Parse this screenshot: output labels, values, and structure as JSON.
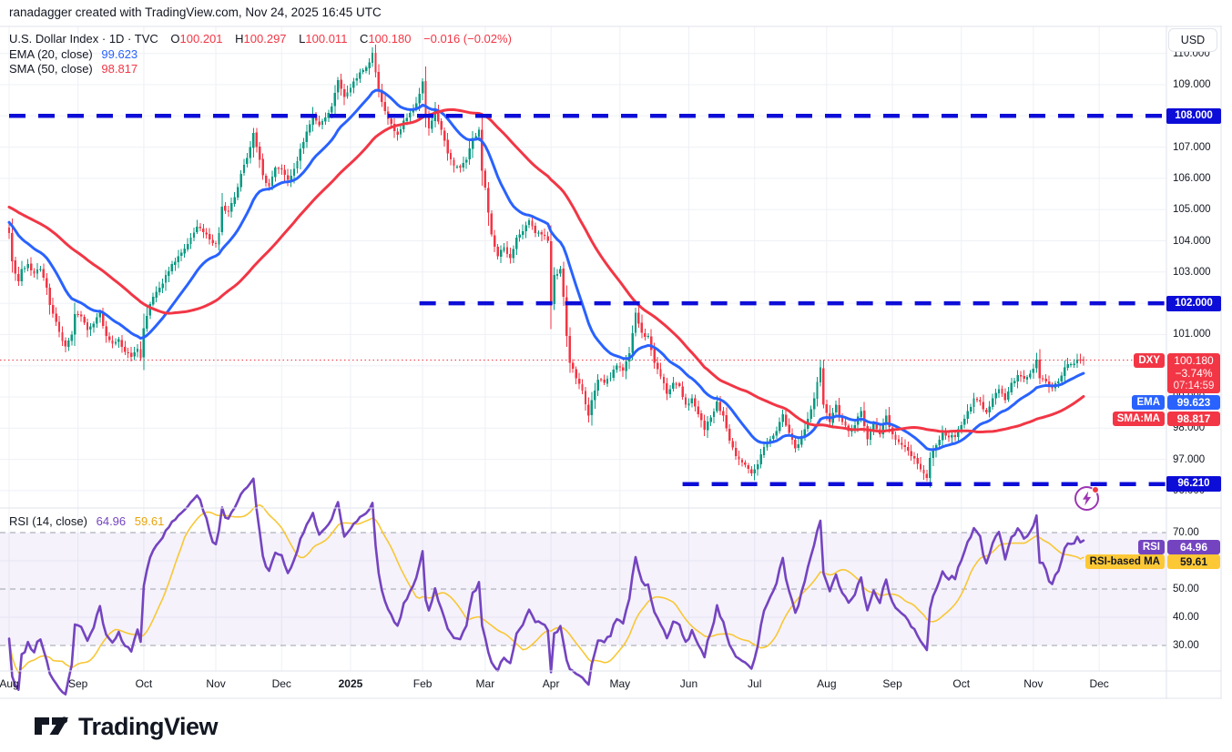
{
  "header": {
    "watermark": "ranadagger created with TradingView.com, Nov 24, 2025 16:45 UTC"
  },
  "legend": {
    "title": "U.S. Dollar Index · 1D · TVC",
    "open_key": "O",
    "open_value": "100.201",
    "high_key": "H",
    "high_value": "100.297",
    "low_key": "L",
    "low_value": "100.011",
    "close_key": "C",
    "close_value": "100.180",
    "change": "−0.016 (−0.02%)",
    "ema_label": "EMA (20, close)",
    "ema_value": "99.623",
    "sma_label": "SMA (50, close)",
    "sma_value": "98.817",
    "rsi_label": "RSI (14, close)",
    "rsi_value": "64.96",
    "rsi_ma_value": "59.61"
  },
  "axis": {
    "currency_button": "USD",
    "price_ticks": [
      "110.000",
      "109.000",
      "108.000",
      "107.000",
      "106.000",
      "105.000",
      "104.000",
      "103.000",
      "102.000",
      "101.000",
      "100.000",
      "99.000",
      "98.000",
      "97.000",
      "96.000"
    ],
    "rsi_ticks": [
      "70.00",
      "50.00",
      "40.00",
      "30.00"
    ],
    "months": [
      {
        "label": "Aug",
        "day": 0
      },
      {
        "label": "Sep",
        "day": 22
      },
      {
        "label": "Oct",
        "day": 43
      },
      {
        "label": "Nov",
        "day": 66
      },
      {
        "label": "Dec",
        "day": 87
      },
      {
        "label": "2025",
        "day": 109,
        "bold": true
      },
      {
        "label": "Feb",
        "day": 132
      },
      {
        "label": "Mar",
        "day": 152
      },
      {
        "label": "Apr",
        "day": 173
      },
      {
        "label": "May",
        "day": 195
      },
      {
        "label": "Jun",
        "day": 217
      },
      {
        "label": "Jul",
        "day": 238
      },
      {
        "label": "Aug",
        "day": 261
      },
      {
        "label": "Sep",
        "day": 282
      },
      {
        "label": "Oct",
        "day": 304
      },
      {
        "label": "Nov",
        "day": 327
      },
      {
        "label": "Dec",
        "day": 348
      }
    ]
  },
  "price_labels": {
    "dxy": {
      "tag": "DXY",
      "price": "100.180",
      "change_pct": "−3.74%",
      "countdown": "07:14:59"
    },
    "ema": {
      "tag": "EMA",
      "value": "99.623"
    },
    "sma": {
      "tag": "SMA:MA",
      "value": "98.817"
    },
    "levels": [
      "108.000",
      "102.000",
      "96.210"
    ],
    "rsi": {
      "tag": "RSI",
      "value": "64.96"
    },
    "rsi_ma": {
      "tag": "RSI-based MA",
      "value": "59.61"
    }
  },
  "footer": {
    "brand": "TradingView"
  },
  "colors": {
    "up": "#089981",
    "down": "#f23645",
    "ema": "#2962ff",
    "sma": "#f23645",
    "level_blue": "#0d0dd8",
    "dotted_red": "#f23645",
    "rsi_purple": "#7444c0",
    "rsi_yellow": "#f8c735",
    "rsi_label_yellow": "#fdc835",
    "band_fill": "rgba(116,68,192,0.07)",
    "dash_gray": "#9aa0aa",
    "grid": "#eef0f6",
    "border": "#e0e3eb",
    "text": "#131722"
  },
  "chart_data": {
    "type": "candlestick",
    "symbol": "U.S. Dollar Index (DXY)",
    "exchange": "TVC",
    "timeframe": "1D",
    "currency": "USD",
    "title": "U.S. Dollar Index · 1D · TVC",
    "ylabel": "USD",
    "price_axis_range": [
      96.0,
      110.0
    ],
    "last_bar": {
      "open": 100.201,
      "high": 100.297,
      "low": 100.011,
      "close": 100.18,
      "change": -0.016,
      "change_pct": -0.02,
      "session_change_pct": -3.74,
      "countdown": "07:14:59"
    },
    "indicators": {
      "ema20": 99.623,
      "sma50": 98.817,
      "rsi14": 64.96,
      "rsi_based_ma": 59.61
    },
    "levels": [
      {
        "value": 108.0,
        "label": "108.000",
        "from_day": 0
      },
      {
        "value": 102.0,
        "label": "102.000",
        "from_day": 131
      },
      {
        "value": 96.21,
        "label": "96.210",
        "from_day": 215
      }
    ],
    "rsi_bands": [
      70,
      50,
      30
    ],
    "days_total": 344,
    "close_keypoints": [
      [
        0,
        104.25
      ],
      [
        1,
        103.35
      ],
      [
        2,
        102.95
      ],
      [
        3,
        102.7
      ],
      [
        4,
        103.1
      ],
      [
        6,
        103.25
      ],
      [
        8,
        102.95
      ],
      [
        10,
        103.1
      ],
      [
        12,
        102.5
      ],
      [
        13,
        101.95
      ],
      [
        15,
        101.4
      ],
      [
        17,
        100.8
      ],
      [
        18,
        100.62
      ],
      [
        20,
        101.0
      ],
      [
        21,
        101.65
      ],
      [
        23,
        101.58
      ],
      [
        25,
        101.15
      ],
      [
        27,
        101.35
      ],
      [
        29,
        101.7
      ],
      [
        31,
        100.95
      ],
      [
        33,
        100.7
      ],
      [
        35,
        100.85
      ],
      [
        37,
        100.45
      ],
      [
        39,
        100.28
      ],
      [
        41,
        100.55
      ],
      [
        42,
        100.24
      ],
      [
        43,
        101.2
      ],
      [
        44,
        101.6
      ],
      [
        46,
        102.2
      ],
      [
        48,
        102.5
      ],
      [
        50,
        102.9
      ],
      [
        52,
        103.25
      ],
      [
        54,
        103.5
      ],
      [
        56,
        103.75
      ],
      [
        58,
        104.1
      ],
      [
        60,
        104.45
      ],
      [
        62,
        104.28
      ],
      [
        64,
        104.05
      ],
      [
        66,
        103.9
      ],
      [
        67,
        104.25
      ],
      [
        68,
        105.1
      ],
      [
        70,
        104.95
      ],
      [
        72,
        105.4
      ],
      [
        74,
        106.15
      ],
      [
        76,
        106.65
      ],
      [
        78,
        107.45
      ],
      [
        79,
        107.0
      ],
      [
        81,
        106.1
      ],
      [
        83,
        105.75
      ],
      [
        85,
        106.35
      ],
      [
        87,
        106.3
      ],
      [
        89,
        105.95
      ],
      [
        91,
        106.3
      ],
      [
        93,
        106.95
      ],
      [
        95,
        107.5
      ],
      [
        97,
        108.05
      ],
      [
        99,
        107.7
      ],
      [
        101,
        107.95
      ],
      [
        103,
        108.3
      ],
      [
        105,
        109.15
      ],
      [
        107,
        108.6
      ],
      [
        109,
        108.9
      ],
      [
        111,
        109.2
      ],
      [
        114,
        109.55
      ],
      [
        116,
        110.02
      ],
      [
        117,
        109.4
      ],
      [
        118,
        108.85
      ],
      [
        120,
        108.15
      ],
      [
        122,
        107.75
      ],
      [
        124,
        107.4
      ],
      [
        126,
        107.85
      ],
      [
        128,
        108.1
      ],
      [
        130,
        108.4
      ],
      [
        132,
        109.1
      ],
      [
        133,
        107.95
      ],
      [
        134,
        107.6
      ],
      [
        136,
        108.2
      ],
      [
        138,
        107.55
      ],
      [
        140,
        106.8
      ],
      [
        142,
        106.4
      ],
      [
        144,
        106.35
      ],
      [
        146,
        106.6
      ],
      [
        148,
        107.3
      ],
      [
        150,
        107.55
      ],
      [
        151,
        106.25
      ],
      [
        152,
        105.7
      ],
      [
        154,
        104.2
      ],
      [
        156,
        103.5
      ],
      [
        158,
        103.8
      ],
      [
        160,
        103.45
      ],
      [
        162,
        104.1
      ],
      [
        164,
        104.3
      ],
      [
        166,
        104.65
      ],
      [
        168,
        104.25
      ],
      [
        170,
        104.2
      ],
      [
        172,
        104.0
      ],
      [
        173,
        101.95
      ],
      [
        174,
        102.9
      ],
      [
        176,
        103.1
      ],
      [
        177,
        102.2
      ],
      [
        178,
        100.95
      ],
      [
        179,
        100.1
      ],
      [
        181,
        99.6
      ],
      [
        183,
        99.2
      ],
      [
        185,
        98.4
      ],
      [
        186,
        98.9
      ],
      [
        188,
        99.55
      ],
      [
        190,
        99.45
      ],
      [
        192,
        99.6
      ],
      [
        194,
        100.0
      ],
      [
        196,
        99.85
      ],
      [
        198,
        100.4
      ],
      [
        200,
        101.7
      ],
      [
        202,
        101.05
      ],
      [
        204,
        100.95
      ],
      [
        206,
        100.1
      ],
      [
        208,
        99.65
      ],
      [
        210,
        99.1
      ],
      [
        212,
        99.45
      ],
      [
        214,
        99.35
      ],
      [
        216,
        98.75
      ],
      [
        218,
        98.95
      ],
      [
        220,
        98.45
      ],
      [
        222,
        97.95
      ],
      [
        224,
        98.35
      ],
      [
        226,
        98.85
      ],
      [
        228,
        98.4
      ],
      [
        230,
        97.6
      ],
      [
        232,
        97.1
      ],
      [
        234,
        96.9
      ],
      [
        236,
        96.7
      ],
      [
        237,
        96.55
      ],
      [
        239,
        96.85
      ],
      [
        241,
        97.4
      ],
      [
        243,
        97.65
      ],
      [
        245,
        97.9
      ],
      [
        247,
        98.45
      ],
      [
        249,
        97.85
      ],
      [
        251,
        97.35
      ],
      [
        253,
        97.75
      ],
      [
        255,
        98.3
      ],
      [
        257,
        98.95
      ],
      [
        259,
        99.95
      ],
      [
        260,
        98.75
      ],
      [
        262,
        98.2
      ],
      [
        264,
        98.75
      ],
      [
        266,
        98.2
      ],
      [
        268,
        97.9
      ],
      [
        270,
        98.1
      ],
      [
        272,
        98.55
      ],
      [
        274,
        97.65
      ],
      [
        276,
        98.15
      ],
      [
        278,
        97.8
      ],
      [
        280,
        98.4
      ],
      [
        282,
        97.8
      ],
      [
        284,
        97.55
      ],
      [
        286,
        97.4
      ],
      [
        288,
        97.1
      ],
      [
        290,
        96.85
      ],
      [
        292,
        96.55
      ],
      [
        293,
        96.4
      ],
      [
        294,
        97.05
      ],
      [
        296,
        97.45
      ],
      [
        298,
        97.85
      ],
      [
        300,
        97.7
      ],
      [
        302,
        97.72
      ],
      [
        304,
        98.1
      ],
      [
        306,
        98.55
      ],
      [
        308,
        98.95
      ],
      [
        310,
        98.85
      ],
      [
        312,
        98.5
      ],
      [
        314,
        98.95
      ],
      [
        316,
        99.25
      ],
      [
        318,
        98.9
      ],
      [
        320,
        99.45
      ],
      [
        322,
        99.7
      ],
      [
        324,
        99.58
      ],
      [
        326,
        99.75
      ],
      [
        328,
        100.2
      ],
      [
        329,
        99.6
      ],
      [
        331,
        99.5
      ],
      [
        333,
        99.28
      ],
      [
        335,
        99.5
      ],
      [
        337,
        99.95
      ],
      [
        339,
        100.05
      ],
      [
        341,
        100.2
      ],
      [
        343,
        100.18
      ]
    ]
  }
}
